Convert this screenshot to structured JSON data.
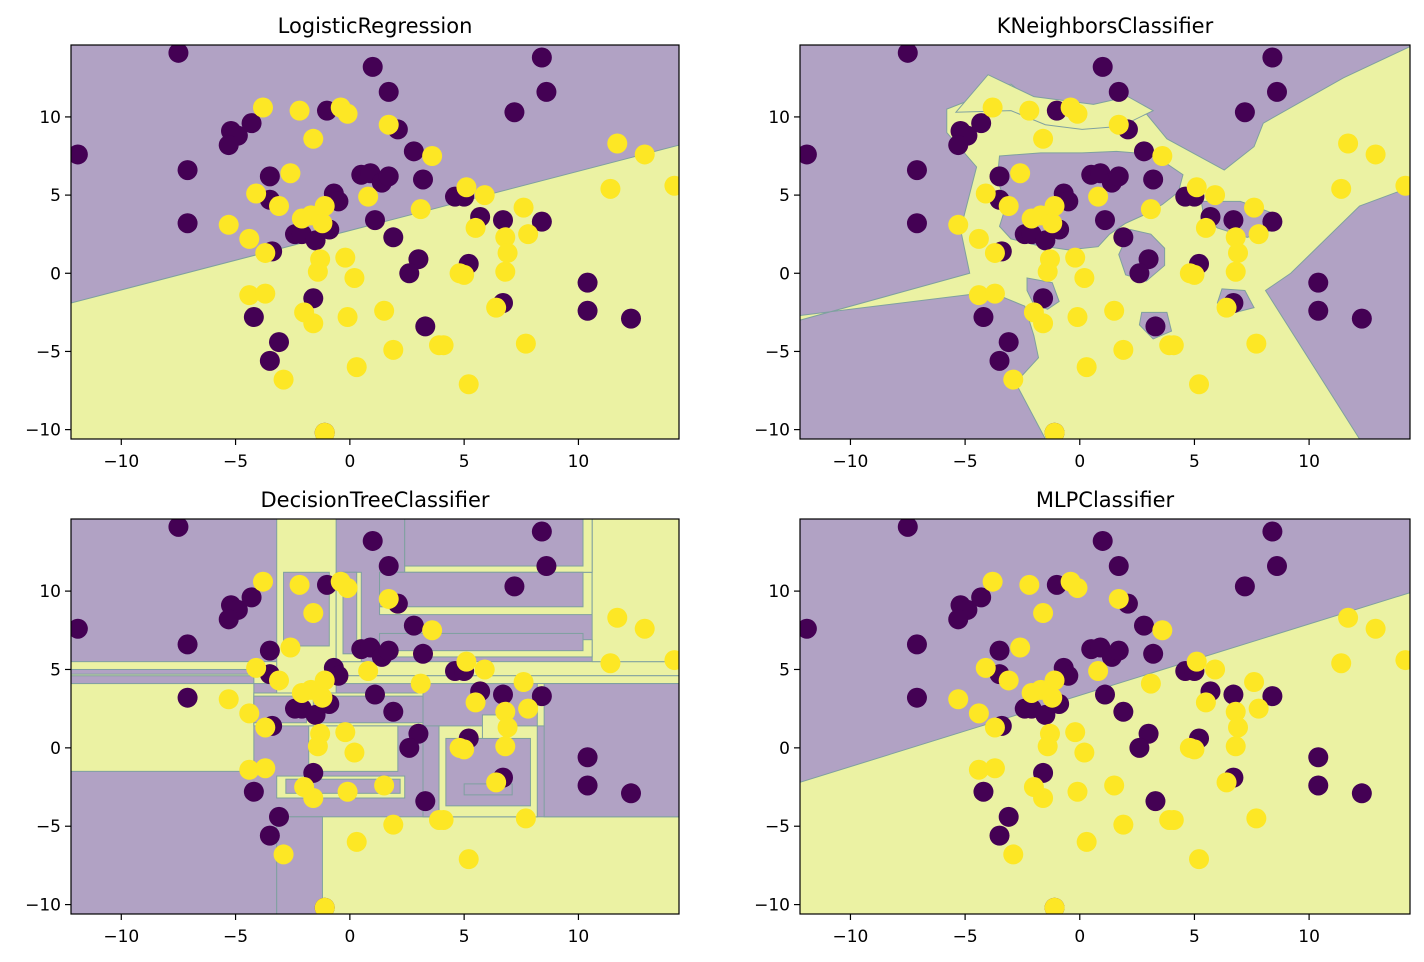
{
  "colors": {
    "class0_region": "#b1a2c4",
    "class1_region": "#ebf2a3",
    "class0_point": "#440154",
    "class1_point": "#fde725",
    "boundary": "#7fa0a0"
  },
  "chart_data": [
    {
      "type": "scatter",
      "title": "LogisticRegression",
      "xlim": [
        -12.2,
        14.4
      ],
      "ylim": [
        -10.6,
        14.6
      ],
      "xticks": [
        -10,
        -5,
        0,
        5,
        10
      ],
      "yticks": [
        -10,
        -5,
        0,
        5,
        10
      ],
      "background": "decision-regions",
      "decision_regions": {
        "kind": "linear",
        "boundary": [
          [
            -12.2,
            -1.9
          ],
          [
            14.4,
            8.2
          ]
        ],
        "above_class": 0
      }
    },
    {
      "type": "scatter",
      "title": "KNeighborsClassifier",
      "xlim": [
        -12.2,
        14.4
      ],
      "ylim": [
        -10.6,
        14.6
      ],
      "xticks": [
        -10,
        -5,
        0,
        5,
        10
      ],
      "yticks": [
        -10,
        -5,
        0,
        5,
        10
      ],
      "background": "decision-regions",
      "decision_regions": {
        "kind": "polygons",
        "base_class": 0,
        "class1_polygons": [
          [
            [
              -12.2,
              -2.7
            ],
            [
              -3.9,
              -1.2
            ],
            [
              -2.4,
              -2.1
            ],
            [
              -2.0,
              -4.0
            ],
            [
              -1.8,
              -5.4
            ],
            [
              -2.8,
              -7.0
            ],
            [
              -1.5,
              -10.6
            ],
            [
              12.2,
              -10.6
            ],
            [
              8.1,
              -1.1
            ],
            [
              9.2,
              0.0
            ],
            [
              12.2,
              4.3
            ],
            [
              14.4,
              5.5
            ],
            [
              14.4,
              14.5
            ],
            [
              11.5,
              12.5
            ],
            [
              8.0,
              9.6
            ],
            [
              7.6,
              8.1
            ],
            [
              6.3,
              6.6
            ],
            [
              3.8,
              8.6
            ],
            [
              2.9,
              10.2
            ],
            [
              0.8,
              9.7
            ],
            [
              -1.2,
              10.0
            ],
            [
              -3.0,
              12.1
            ],
            [
              -5.8,
              10.5
            ],
            [
              -5.8,
              9.0
            ],
            [
              -4.5,
              6.8
            ],
            [
              -5.2,
              2.8
            ],
            [
              -4.8,
              0.0
            ],
            [
              -12.2,
              -3.0
            ]
          ],
          [
            [
              -5.4,
              10.3
            ],
            [
              -4.0,
              12.7
            ],
            [
              -2.0,
              11.3
            ],
            [
              0.6,
              10.8
            ],
            [
              2.1,
              11.3
            ],
            [
              3.2,
              10.4
            ],
            [
              1.8,
              9.4
            ],
            [
              0.1,
              9.2
            ],
            [
              -1.5,
              9.5
            ],
            [
              -3.0,
              10.4
            ]
          ]
        ],
        "class0_islands": [
          [
            [
              -3.5,
              7.5
            ],
            [
              -1.7,
              7.7
            ],
            [
              0.1,
              7.7
            ],
            [
              1.6,
              7.8
            ],
            [
              3.2,
              7.6
            ],
            [
              4.5,
              6.3
            ],
            [
              4.3,
              5.2
            ],
            [
              3.6,
              4.4
            ],
            [
              2.9,
              3.8
            ],
            [
              2.0,
              3.2
            ],
            [
              1.3,
              2.5
            ],
            [
              0.8,
              1.7
            ],
            [
              -0.5,
              1.5
            ],
            [
              -1.9,
              1.8
            ],
            [
              -3.0,
              2.2
            ],
            [
              -3.5,
              3.0
            ],
            [
              -3.2,
              4.4
            ],
            [
              -3.6,
              6.0
            ]
          ],
          [
            [
              -2.3,
              -0.3
            ],
            [
              -1.2,
              -0.6
            ],
            [
              -0.9,
              -1.8
            ],
            [
              -1.4,
              -2.3
            ],
            [
              -2.0,
              -2.0
            ],
            [
              -2.3,
              -1.1
            ]
          ],
          [
            [
              2.2,
              2.8
            ],
            [
              3.1,
              2.5
            ],
            [
              3.7,
              1.6
            ],
            [
              3.7,
              0.5
            ],
            [
              2.9,
              -0.5
            ],
            [
              2.0,
              -0.1
            ],
            [
              1.7,
              1.2
            ]
          ],
          [
            [
              2.7,
              -2.5
            ],
            [
              3.8,
              -2.5
            ],
            [
              4.0,
              -3.7
            ],
            [
              3.2,
              -4.2
            ],
            [
              2.6,
              -3.3
            ]
          ],
          [
            [
              5.3,
              4.6
            ],
            [
              7.0,
              4.6
            ],
            [
              8.5,
              3.8
            ],
            [
              8.5,
              2.8
            ],
            [
              7.3,
              2.3
            ],
            [
              6.0,
              2.9
            ],
            [
              5.4,
              3.7
            ]
          ],
          [
            [
              6.2,
              -1.0
            ],
            [
              7.2,
              -1.1
            ],
            [
              7.6,
              -2.2
            ],
            [
              6.8,
              -2.5
            ],
            [
              6.0,
              -1.9
            ]
          ]
        ]
      }
    },
    {
      "type": "scatter",
      "title": "DecisionTreeClassifier",
      "xlim": [
        -12.2,
        14.4
      ],
      "ylim": [
        -10.6,
        14.6
      ],
      "xticks": [
        -10,
        -5,
        0,
        5,
        10
      ],
      "yticks": [
        -10,
        -5,
        0,
        5,
        10
      ],
      "background": "decision-regions",
      "decision_regions": {
        "kind": "rectangles",
        "base_class": 0,
        "class1_rects": [
          [
            -12.2,
            4.6,
            14.4,
            5.5
          ],
          [
            -12.2,
            -1.5,
            -4.2,
            4.1
          ],
          [
            -3.2,
            -10.6,
            14.4,
            -4.4
          ],
          [
            -12.2,
            -10.6,
            -3.2,
            -10.6
          ],
          [
            -4.2,
            4.1,
            14.4,
            4.6
          ],
          [
            -4.2,
            1.4,
            3.2,
            3.5
          ],
          [
            -3.2,
            3.5,
            -0.6,
            14.6
          ],
          [
            -0.6,
            5.5,
            0.5,
            11.2
          ],
          [
            1.3,
            8.5,
            10.6,
            11.2
          ],
          [
            10.6,
            5.5,
            14.4,
            14.6
          ],
          [
            1.3,
            5.8,
            10.6,
            6.9
          ],
          [
            2.4,
            11.2,
            10.6,
            14.6
          ],
          [
            -3.2,
            -3.2,
            2.4,
            -1.8
          ],
          [
            3.9,
            -4.4,
            8.2,
            1.4
          ],
          [
            -1.8,
            -1.5,
            2.1,
            1.4
          ],
          [
            5.8,
            -1.5,
            6.8,
            2.1
          ],
          [
            8.2,
            1.4,
            14.4,
            4.1
          ]
        ],
        "class0_rects": [
          [
            2.4,
            11.6,
            10.2,
            14.6
          ],
          [
            1.3,
            9.0,
            10.2,
            11.2
          ],
          [
            1.3,
            6.2,
            10.2,
            7.3
          ],
          [
            -12.2,
            4.7,
            -4.2,
            5.0
          ],
          [
            -4.2,
            1.6,
            -1.9,
            3.3
          ],
          [
            -1.6,
            1.6,
            3.2,
            3.3
          ],
          [
            -0.3,
            6.0,
            0.3,
            11.2
          ],
          [
            -2.9,
            6.5,
            -0.9,
            11.2
          ],
          [
            -3.2,
            -4.4,
            -1.2,
            -10.6
          ],
          [
            3.2,
            -4.4,
            3.9,
            1.4
          ],
          [
            4.2,
            -3.7,
            7.9,
            0.6
          ],
          [
            8.5,
            -4.4,
            14.4,
            4.1
          ],
          [
            -2.8,
            -2.0,
            2.2,
            -2.9
          ],
          [
            5.0,
            -2.3,
            7.1,
            -3.0
          ]
        ]
      }
    },
    {
      "type": "scatter",
      "title": "MLPClassifier",
      "xlim": [
        -12.2,
        14.4
      ],
      "ylim": [
        -10.6,
        14.6
      ],
      "xticks": [
        -10,
        -5,
        0,
        5,
        10
      ],
      "yticks": [
        -10,
        -5,
        0,
        5,
        10
      ],
      "background": "decision-regions",
      "decision_regions": {
        "kind": "linear",
        "boundary": [
          [
            -12.2,
            -2.2
          ],
          [
            14.4,
            9.9
          ]
        ],
        "above_class": 0
      }
    }
  ],
  "points": {
    "class0": [
      [
        -7.5,
        14.1
      ],
      [
        8.4,
        13.8
      ],
      [
        1.0,
        13.2
      ],
      [
        1.7,
        11.6
      ],
      [
        8.6,
        11.6
      ],
      [
        -1.0,
        10.4
      ],
      [
        7.2,
        10.3
      ],
      [
        -4.3,
        9.6
      ],
      [
        -5.2,
        9.1
      ],
      [
        -4.9,
        8.8
      ],
      [
        -5.3,
        8.2
      ],
      [
        2.1,
        9.2
      ],
      [
        2.8,
        7.8
      ],
      [
        -11.9,
        7.6
      ],
      [
        -7.1,
        6.6
      ],
      [
        -3.5,
        6.2
      ],
      [
        0.5,
        6.3
      ],
      [
        0.9,
        6.4
      ],
      [
        1.4,
        5.8
      ],
      [
        1.7,
        6.2
      ],
      [
        3.2,
        6.0
      ],
      [
        -0.7,
        5.1
      ],
      [
        -3.5,
        4.7
      ],
      [
        -0.5,
        4.6
      ],
      [
        4.6,
        4.9
      ],
      [
        5.0,
        4.9
      ],
      [
        5.7,
        3.6
      ],
      [
        6.7,
        3.4
      ],
      [
        8.4,
        3.3
      ],
      [
        -7.1,
        3.2
      ],
      [
        1.1,
        3.4
      ],
      [
        -2.4,
        2.5
      ],
      [
        -2.1,
        2.5
      ],
      [
        -1.5,
        2.1
      ],
      [
        -0.9,
        2.8
      ],
      [
        1.9,
        2.3
      ],
      [
        -3.4,
        1.4
      ],
      [
        3.0,
        0.9
      ],
      [
        5.2,
        0.6
      ],
      [
        2.6,
        0.0
      ],
      [
        10.4,
        -0.6
      ],
      [
        -1.6,
        -1.6
      ],
      [
        6.7,
        -1.9
      ],
      [
        10.4,
        -2.4
      ],
      [
        -4.2,
        -2.8
      ],
      [
        12.3,
        -2.9
      ],
      [
        3.3,
        -3.4
      ],
      [
        -3.1,
        -4.4
      ],
      [
        -3.5,
        -5.6
      ],
      [
        -1.1,
        -10.2
      ]
    ],
    "class1": [
      [
        -3.8,
        10.6
      ],
      [
        -2.2,
        10.4
      ],
      [
        -0.4,
        10.6
      ],
      [
        -0.1,
        10.2
      ],
      [
        1.7,
        9.5
      ],
      [
        -1.6,
        8.6
      ],
      [
        11.7,
        8.3
      ],
      [
        12.9,
        7.6
      ],
      [
        3.6,
        7.5
      ],
      [
        14.2,
        5.6
      ],
      [
        11.4,
        5.4
      ],
      [
        -2.6,
        6.4
      ],
      [
        5.1,
        5.5
      ],
      [
        5.9,
        5.0
      ],
      [
        -4.1,
        5.1
      ],
      [
        0.8,
        4.9
      ],
      [
        -1.1,
        4.3
      ],
      [
        -3.1,
        4.3
      ],
      [
        7.6,
        4.2
      ],
      [
        3.1,
        4.1
      ],
      [
        -1.7,
        3.7
      ],
      [
        -1.2,
        3.2
      ],
      [
        -5.3,
        3.1
      ],
      [
        -2.1,
        3.5
      ],
      [
        5.5,
        2.9
      ],
      [
        6.8,
        2.3
      ],
      [
        7.8,
        2.5
      ],
      [
        -4.4,
        2.2
      ],
      [
        -3.7,
        1.3
      ],
      [
        6.9,
        1.3
      ],
      [
        -1.3,
        0.9
      ],
      [
        -0.2,
        1.0
      ],
      [
        6.8,
        0.1
      ],
      [
        4.8,
        0.0
      ],
      [
        5.0,
        -0.1
      ],
      [
        -1.4,
        0.1
      ],
      [
        0.2,
        -0.3
      ],
      [
        -4.4,
        -1.4
      ],
      [
        -3.7,
        -1.3
      ],
      [
        6.4,
        -2.2
      ],
      [
        1.5,
        -2.4
      ],
      [
        -2.0,
        -2.5
      ],
      [
        -1.6,
        -3.2
      ],
      [
        -0.1,
        -2.8
      ],
      [
        3.9,
        -4.6
      ],
      [
        4.1,
        -4.6
      ],
      [
        7.7,
        -4.5
      ],
      [
        1.9,
        -4.9
      ],
      [
        -2.9,
        -6.8
      ],
      [
        0.3,
        -6.0
      ],
      [
        5.2,
        -7.1
      ],
      [
        -1.1,
        -10.2
      ]
    ]
  }
}
